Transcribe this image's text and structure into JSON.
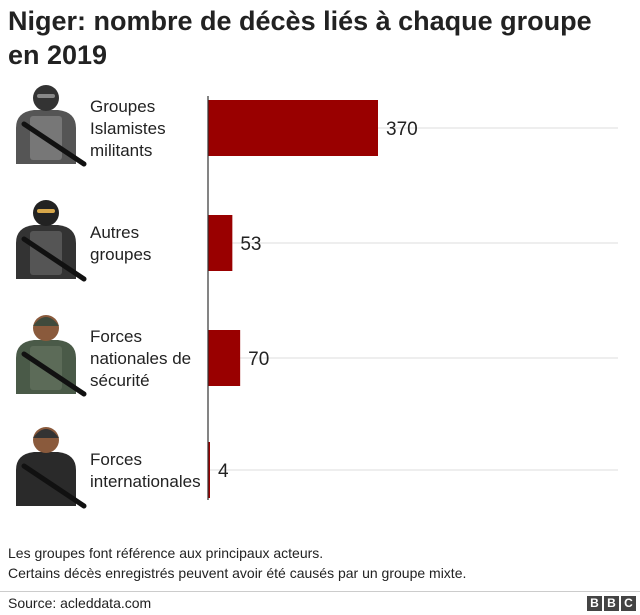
{
  "title": "Niger: nombre de décès liés à chaque groupe en 2019",
  "chart_data": {
    "type": "bar",
    "orientation": "horizontal",
    "categories": [
      [
        "Groupes",
        "Islamistes",
        "militants"
      ],
      [
        "Autres",
        "groupes"
      ],
      [
        "Forces",
        "nationales de",
        "sécurité"
      ],
      [
        "Forces",
        "internationales"
      ]
    ],
    "values": [
      370,
      53,
      70,
      4
    ],
    "bar_color": "#990000",
    "icons": [
      "militant-icon",
      "armed-group-icon",
      "soldier-icon",
      "international-soldier-icon"
    ]
  },
  "notes": [
    "Les groupes font référence aux principaux acteurs.",
    "Certains décès enregistrés peuvent avoir été causés par un groupe mixte."
  ],
  "source": "Source: acleddata.com",
  "logo": [
    "B",
    "B",
    "C"
  ]
}
